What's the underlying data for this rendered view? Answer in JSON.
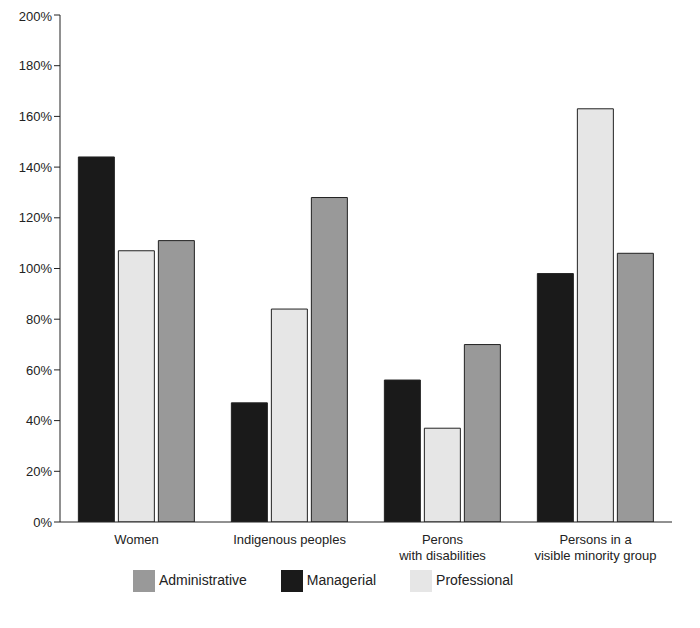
{
  "chart_data": {
    "type": "bar",
    "categories": [
      "Women",
      "Indigenous peoples",
      "Perons with disabilities",
      "Persons in a visible minority group"
    ],
    "series": [
      {
        "name": "Managerial",
        "color": "#1a1a1a",
        "values": [
          144,
          47,
          56,
          98
        ]
      },
      {
        "name": "Professional",
        "color": "#e6e6e6",
        "values": [
          107,
          84,
          37,
          163
        ]
      },
      {
        "name": "Administrative",
        "color": "#999999",
        "values": [
          111,
          128,
          70,
          106
        ]
      }
    ],
    "ylim": [
      0,
      200
    ],
    "yticks": [
      {
        "value": 0,
        "label": "0%"
      },
      {
        "value": 20,
        "label": "20%"
      },
      {
        "value": 40,
        "label": "40%"
      },
      {
        "value": 60,
        "label": "60%"
      },
      {
        "value": 80,
        "label": "80%"
      },
      {
        "value": 100,
        "label": "100%"
      },
      {
        "value": 120,
        "label": "120%"
      },
      {
        "value": 140,
        "label": "140%"
      },
      {
        "value": 160,
        "label": "160%"
      },
      {
        "value": 180,
        "label": "180%"
      },
      {
        "value": 200,
        "label": "200%"
      }
    ],
    "grid": false,
    "legend": "bottom"
  }
}
